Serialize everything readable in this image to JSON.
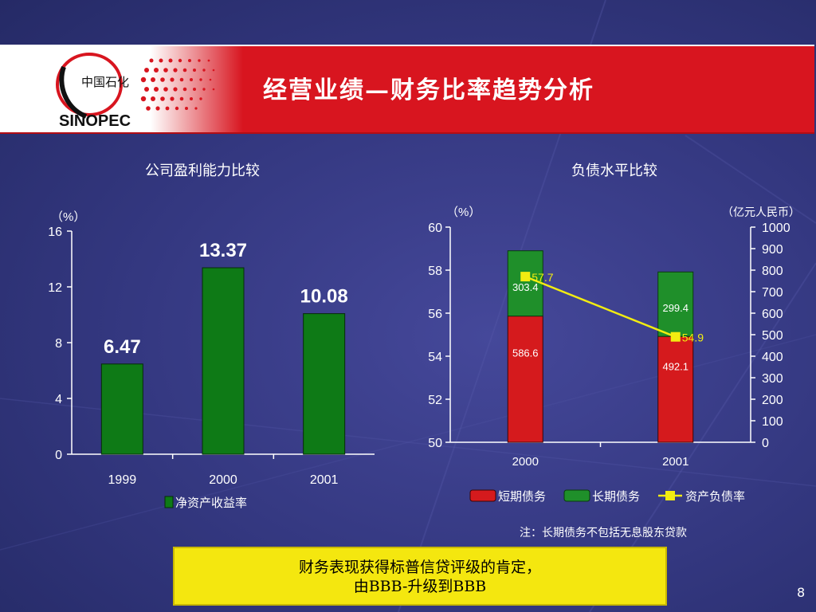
{
  "slide": {
    "title": "经营业绩—财务比率趋势分析",
    "note": "注：长期债务不包括无息股东贷款",
    "callout_line1": "财务表现获得标普信贷评级的肯定，",
    "callout_line2": "由BBB-升级到BBB",
    "page_number": "8",
    "logo_text_cn": "中国石化",
    "logo_text_en": "SINOPEC"
  },
  "colors": {
    "banner_red": "#d8151f",
    "bar_green": "#0e7a16",
    "short_debt_red": "#d51a1d",
    "long_debt_green": "#1f8f2a",
    "ratio_yellow": "#f2ec11",
    "callout_yellow": "#f4e70f"
  },
  "chart_data": [
    {
      "type": "bar",
      "title": "公司盈利能力比较",
      "unit_label": "（%）",
      "categories": [
        "1999",
        "2000",
        "2001"
      ],
      "series": [
        {
          "name": "净资产收益率",
          "values": [
            6.47,
            13.37,
            10.08
          ]
        }
      ],
      "value_labels": [
        "6.47",
        "13.37",
        "10.08"
      ],
      "ylim": [
        0,
        16
      ],
      "yticks": [
        "0",
        "4",
        "8",
        "12",
        "16"
      ],
      "legend": "bottom-center"
    },
    {
      "type": "bar",
      "stacked": true,
      "title": "负债水平比较",
      "left_unit_label": "（%）",
      "right_unit_label": "（亿元人民币）",
      "categories": [
        "2000",
        "2001"
      ],
      "series": [
        {
          "name": "短期债务",
          "axis": "right",
          "values": [
            586.6,
            492.1
          ],
          "labels": [
            "586.6",
            "492.1"
          ]
        },
        {
          "name": "长期债务",
          "axis": "right",
          "values": [
            303.4,
            299.4
          ],
          "labels": [
            "303.4",
            "299.4"
          ]
        },
        {
          "name": "资产负债率",
          "axis": "left",
          "type": "line",
          "values": [
            57.7,
            54.9
          ],
          "labels": [
            "57.7",
            "54.9"
          ]
        }
      ],
      "y_left": {
        "lim": [
          50,
          60
        ],
        "ticks": [
          "50",
          "52",
          "54",
          "56",
          "58",
          "60"
        ]
      },
      "y_right": {
        "lim": [
          0,
          1000
        ],
        "ticks": [
          "0",
          "100",
          "200",
          "300",
          "400",
          "500",
          "600",
          "700",
          "800",
          "900",
          "1000"
        ]
      },
      "legend": "bottom-center"
    }
  ]
}
